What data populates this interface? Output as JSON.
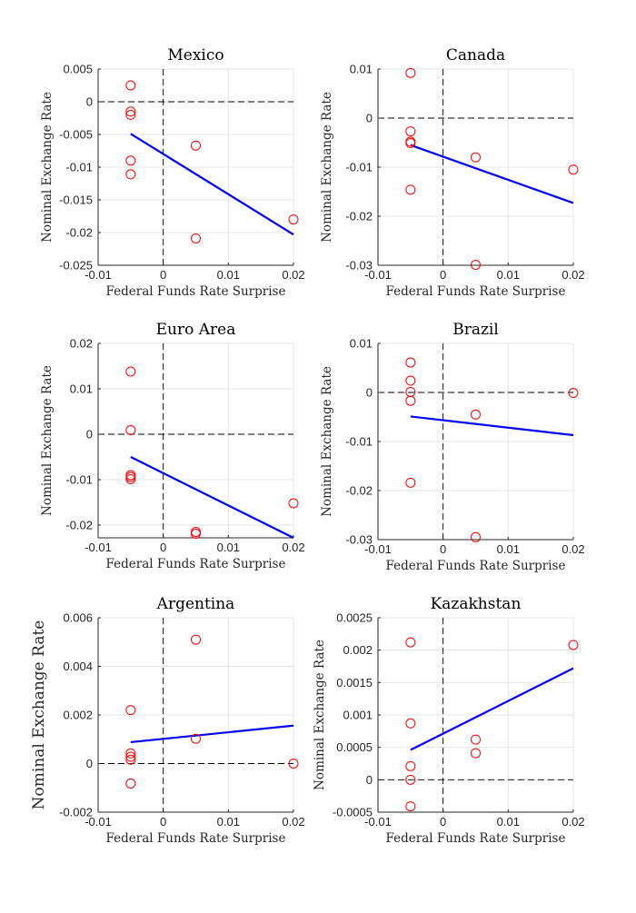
{
  "figure": {
    "y_label": "Nominal Exchange Rate",
    "x_label": "Federal Funds Rate Surprise",
    "colors": {
      "scatter": "#ff0000",
      "fit": "#0000ff",
      "zero": "#000000",
      "grid": "#e5e5e5",
      "axis": "#262626"
    }
  },
  "chart_data": [
    {
      "type": "scatter",
      "title": "Mexico",
      "xlabel": "Federal Funds Rate Surprise",
      "ylabel": "Nominal Exchange Rate",
      "xlim": [
        -0.01,
        0.02
      ],
      "ylim": [
        -0.025,
        0.005
      ],
      "xticks": [
        -0.01,
        0,
        0.01,
        0.02
      ],
      "xtick_labels": [
        "-0.01",
        "0",
        "0.01",
        "0.02"
      ],
      "yticks": [
        0.005,
        0,
        -0.005,
        -0.01,
        -0.015,
        -0.02,
        -0.025
      ],
      "ytick_labels": [
        "0.005",
        "0",
        "-0.005",
        "-0.01",
        "-0.015",
        "-0.02",
        "-0.025"
      ],
      "grid": true,
      "points": [
        [
          -0.005,
          0.0025
        ],
        [
          -0.005,
          -0.0015
        ],
        [
          -0.005,
          -0.002
        ],
        [
          -0.005,
          -0.009
        ],
        [
          -0.005,
          -0.0111
        ],
        [
          0.005,
          -0.0067
        ],
        [
          0.005,
          -0.0209
        ],
        [
          0.02,
          -0.018
        ]
      ],
      "fit_line": [
        [
          -0.005,
          -0.0049
        ],
        [
          0.02,
          -0.0203
        ]
      ]
    },
    {
      "type": "scatter",
      "title": "Canada",
      "xlabel": "Federal Funds Rate Surprise",
      "ylabel": "Nominal Exchange Rate",
      "xlim": [
        -0.01,
        0.02
      ],
      "ylim": [
        -0.03,
        0.01
      ],
      "xticks": [
        -0.01,
        0,
        0.01,
        0.02
      ],
      "xtick_labels": [
        "-0.01",
        "0",
        "0.01",
        "0.02"
      ],
      "yticks": [
        0.01,
        0,
        -0.01,
        -0.02,
        -0.03
      ],
      "ytick_labels": [
        "0.01",
        "0",
        "-0.01",
        "-0.02",
        "-0.03"
      ],
      "grid": true,
      "points": [
        [
          -0.005,
          0.0092
        ],
        [
          -0.005,
          -0.0027
        ],
        [
          -0.005,
          -0.0048
        ],
        [
          -0.005,
          -0.0051
        ],
        [
          -0.005,
          -0.0146
        ],
        [
          0.005,
          -0.008
        ],
        [
          0.005,
          -0.0299
        ],
        [
          0.02,
          -0.0105
        ]
      ],
      "fit_line": [
        [
          -0.005,
          -0.0055
        ],
        [
          0.02,
          -0.0173
        ]
      ]
    },
    {
      "type": "scatter",
      "title": "Euro Area",
      "xlabel": "Federal Funds Rate Surprise",
      "ylabel": "Nominal Exchange Rate",
      "xlim": [
        -0.01,
        0.02
      ],
      "ylim": [
        -0.0228,
        0.02
      ],
      "xticks": [
        -0.01,
        0,
        0.01,
        0.02
      ],
      "xtick_labels": [
        "-0.01",
        "0",
        "0.01",
        "0.02"
      ],
      "yticks": [
        0.02,
        0.01,
        0,
        -0.01,
        -0.02
      ],
      "ytick_labels": [
        "0.02",
        "0.01",
        "0",
        "-0.01",
        "-0.02"
      ],
      "grid": true,
      "points": [
        [
          -0.005,
          0.0138
        ],
        [
          -0.005,
          0.0009
        ],
        [
          -0.005,
          -0.009
        ],
        [
          -0.005,
          -0.0094
        ],
        [
          -0.005,
          -0.0099
        ],
        [
          0.005,
          -0.0215
        ],
        [
          0.005,
          -0.0219
        ],
        [
          0.02,
          -0.0152
        ]
      ],
      "fit_line": [
        [
          -0.005,
          -0.005
        ],
        [
          0.02,
          -0.0228
        ]
      ]
    },
    {
      "type": "scatter",
      "title": "Brazil",
      "xlabel": "Federal Funds Rate Surprise",
      "ylabel": "Nominal Exchange Rate",
      "xlim": [
        -0.01,
        0.02
      ],
      "ylim": [
        -0.03,
        0.01
      ],
      "xticks": [
        -0.01,
        0,
        0.01,
        0.02
      ],
      "xtick_labels": [
        "-0.01",
        "0",
        "0.01",
        "0.02"
      ],
      "yticks": [
        0.01,
        0,
        -0.01,
        -0.02,
        -0.03
      ],
      "ytick_labels": [
        "0.01",
        "0",
        "-0.01",
        "-0.02",
        "-0.03"
      ],
      "grid": true,
      "points": [
        [
          -0.005,
          0.0061
        ],
        [
          -0.005,
          0.0024
        ],
        [
          -0.005,
          0.0001
        ],
        [
          -0.005,
          -0.0017
        ],
        [
          -0.005,
          -0.0184
        ],
        [
          0.005,
          -0.0045
        ],
        [
          0.005,
          -0.0295
        ],
        [
          0.02,
          -0.0001
        ]
      ],
      "fit_line": [
        [
          -0.005,
          -0.0049
        ],
        [
          0.02,
          -0.0087
        ]
      ]
    },
    {
      "type": "scatter",
      "title": "Argentina",
      "xlabel": "Federal Funds Rate Surprise",
      "ylabel": "Nominal Exchange Rate",
      "ylabel_large": true,
      "xlim": [
        -0.01,
        0.02
      ],
      "ylim": [
        -0.002,
        0.006
      ],
      "xticks": [
        -0.01,
        0,
        0.01,
        0.02
      ],
      "xtick_labels": [
        "-0.01",
        "0",
        "0.01",
        "0.02"
      ],
      "yticks": [
        0.006,
        0.004,
        0.002,
        0,
        -0.002
      ],
      "ytick_labels": [
        "0.006",
        "0.004",
        "0.002",
        "0",
        "-0.002"
      ],
      "grid": true,
      "points": [
        [
          -0.005,
          0.0022
        ],
        [
          -0.005,
          0.00042
        ],
        [
          -0.005,
          0.00028
        ],
        [
          -0.005,
          0.00016
        ],
        [
          -0.005,
          -0.00082
        ],
        [
          0.005,
          0.0051
        ],
        [
          0.005,
          0.00102
        ],
        [
          0.02,
          0.0
        ]
      ],
      "fit_line": [
        [
          -0.005,
          0.00088
        ],
        [
          0.02,
          0.00156
        ]
      ]
    },
    {
      "type": "scatter",
      "title": "Kazakhstan",
      "xlabel": "Federal Funds Rate Surprise",
      "ylabel": "Nominal Exchange Rate",
      "xlim": [
        -0.01,
        0.02
      ],
      "ylim": [
        -0.0005,
        0.0025
      ],
      "xticks": [
        -0.01,
        0,
        0.01,
        0.02
      ],
      "xtick_labels": [
        "-0.01",
        "0",
        "0.01",
        "0.02"
      ],
      "yticks": [
        0.0025,
        0.002,
        0.0015,
        0.001,
        0.0005,
        0,
        -0.0005
      ],
      "ytick_labels": [
        "0.0025",
        "0.002",
        "0.0015",
        "0.001",
        "0.0005",
        "0",
        "-0.0005"
      ],
      "grid": true,
      "points": [
        [
          -0.005,
          0.00212
        ],
        [
          -0.005,
          0.00087
        ],
        [
          -0.005,
          0.00021
        ],
        [
          -0.005,
          0.0
        ],
        [
          -0.005,
          -0.00041
        ],
        [
          0.005,
          0.00062
        ],
        [
          0.005,
          0.00041
        ],
        [
          0.02,
          0.00208
        ]
      ],
      "fit_line": [
        [
          -0.005,
          0.00046
        ],
        [
          0.02,
          0.00172
        ]
      ]
    }
  ]
}
